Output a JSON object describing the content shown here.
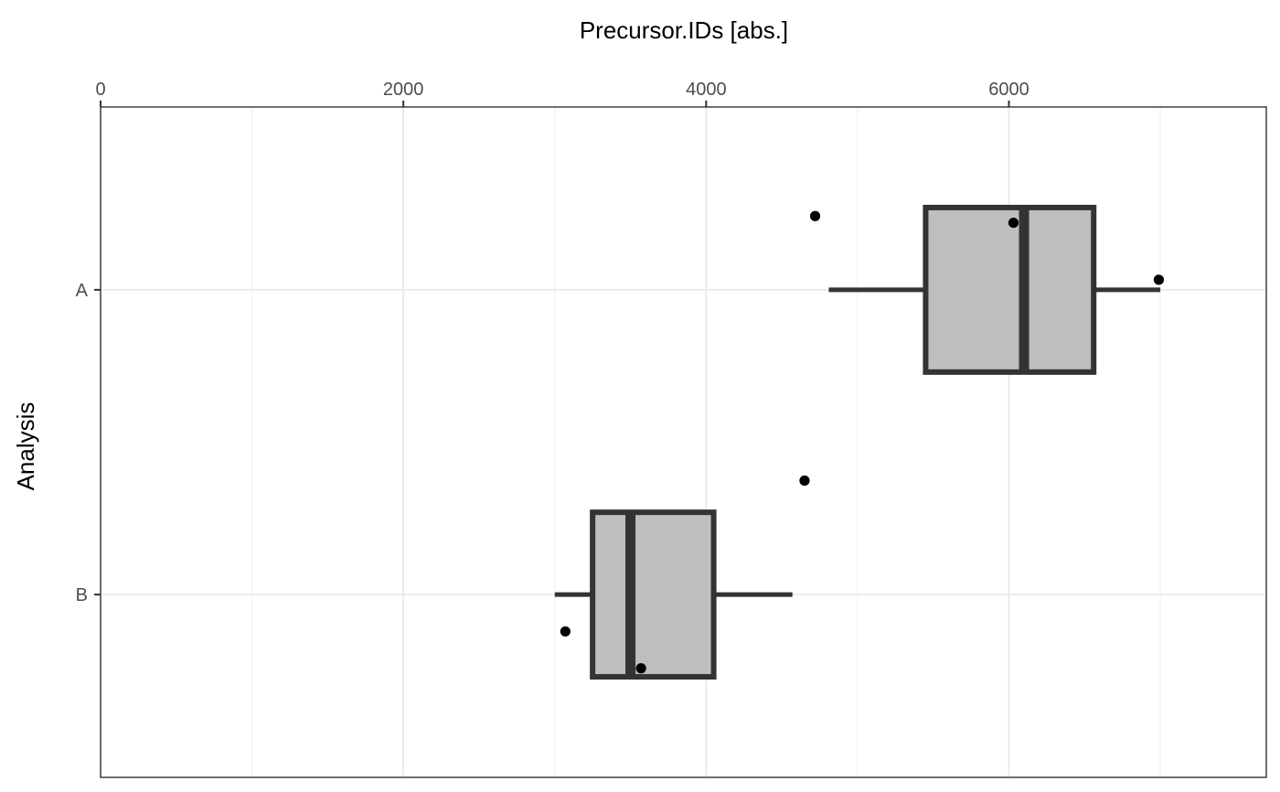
{
  "chart_data": {
    "type": "boxplot",
    "orientation": "horizontal",
    "title": "",
    "xlabel": "Precursor.IDs  [abs.]",
    "ylabel": "Analysis",
    "x_axis_position": "top",
    "xlim": [
      0,
      7700
    ],
    "x_ticks": [
      0,
      2000,
      4000,
      6000
    ],
    "x_tick_labels": [
      "0",
      "2000",
      "4000",
      "6000"
    ],
    "categories": [
      "A",
      "B"
    ],
    "grid": true,
    "legend": "none",
    "colors": {
      "box_fill": "#bebebe",
      "box_stroke": "#333333",
      "point": "#000000",
      "grid_major": "#ebebeb",
      "grid_minor": "#f2f2f2",
      "panel_border": "#333333"
    },
    "boxes": [
      {
        "category": "A",
        "whisker_low": 4810,
        "q1": 5450,
        "median": 6100,
        "q3": 6560,
        "whisker_high": 7000
      },
      {
        "category": "B",
        "whisker_low": 3000,
        "q1": 3250,
        "median": 3500,
        "q3": 4050,
        "whisker_high": 4570
      }
    ],
    "points": [
      {
        "category": "A",
        "x": 4720,
        "y_jitter": 0.22
      },
      {
        "category": "A",
        "x": 6030,
        "y_jitter": 0.2
      },
      {
        "category": "A",
        "x": 6990,
        "y_jitter": 0.03
      },
      {
        "category": "B",
        "x": 4650,
        "y_jitter": 0.34
      },
      {
        "category": "B",
        "x": 3070,
        "y_jitter": -0.11
      },
      {
        "category": "B",
        "x": 3570,
        "y_jitter": -0.22
      }
    ]
  }
}
